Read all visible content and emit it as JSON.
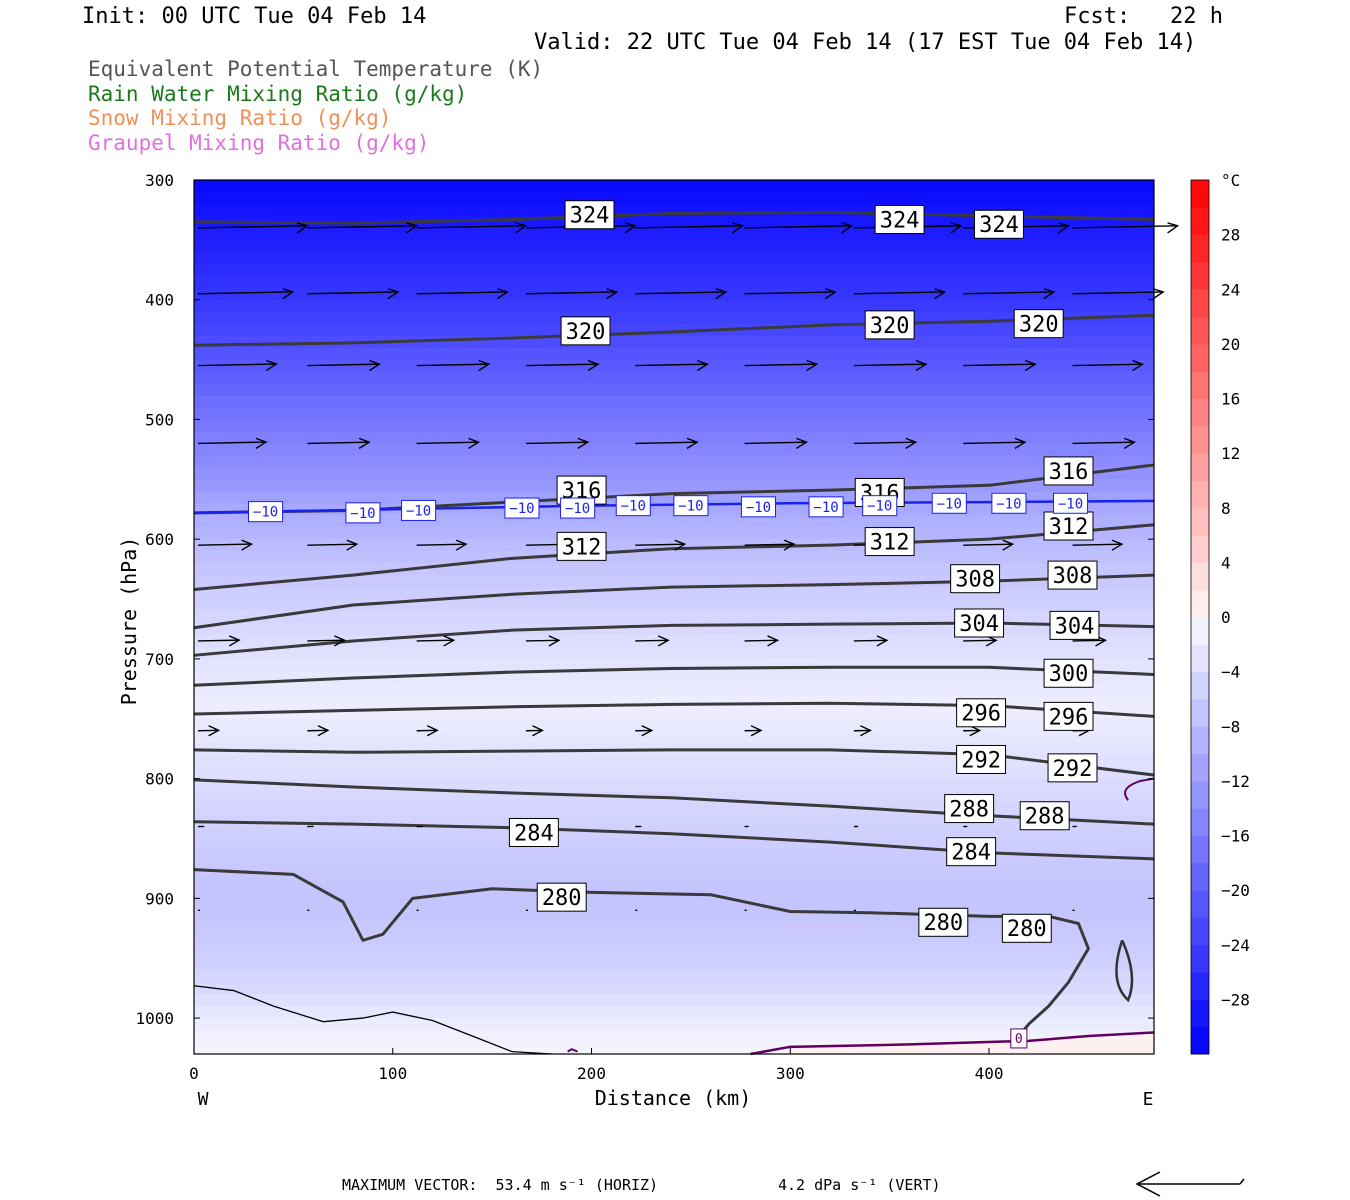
{
  "header": {
    "init": "Init: 00 UTC Tue 04 Feb 14",
    "fcst": "Fcst:   22 h",
    "valid": "Valid: 22 UTC Tue 04 Feb 14 (17 EST Tue 04 Feb 14)"
  },
  "fields": [
    {
      "label": "Equivalent Potential Temperature (K)",
      "color": "#555555"
    },
    {
      "label": "Rain Water Mixing Ratio (g/kg)",
      "color": "#1a7a1a"
    },
    {
      "label": "Snow Mixing Ratio (g/kg)",
      "color": "#f0905a"
    },
    {
      "label": "Graupel Mixing Ratio (g/kg)",
      "color": "#e070e0"
    }
  ],
  "footer": {
    "max_vector_label": "MAXIMUM VECTOR:",
    "horiz": "53.4 m s⁻¹ (HORIZ)",
    "vert": "4.2 dPa s⁻¹ (VERT)"
  },
  "chart_data": {
    "type": "heatmap",
    "xlabel": "Distance (km)",
    "ylabel": "Pressure (hPa)",
    "xlim": [
      0,
      483
    ],
    "ylim": [
      1030,
      300
    ],
    "x_ticks": [
      0,
      100,
      200,
      300,
      400
    ],
    "y_ticks": [
      300,
      400,
      500,
      600,
      700,
      800,
      900,
      1000
    ],
    "x_end_labels": {
      "left": "W",
      "right": "E"
    },
    "colorbar": {
      "unit": "°C",
      "ticks": [
        28,
        24,
        20,
        16,
        12,
        8,
        4,
        0,
        -4,
        -8,
        -12,
        -16,
        -20,
        -24,
        -28
      ],
      "range": [
        -32,
        32
      ]
    },
    "theta_e_contours": [
      {
        "value": 324,
        "points": [
          [
            0,
            335
          ],
          [
            80,
            336
          ],
          [
            160,
            333
          ],
          [
            240,
            328
          ],
          [
            320,
            327
          ],
          [
            400,
            330
          ],
          [
            483,
            333
          ]
        ],
        "labels": [
          [
            199,
            329
          ],
          [
            355,
            333
          ],
          [
            405,
            337
          ]
        ]
      },
      {
        "value": 320,
        "points": [
          [
            0,
            438
          ],
          [
            80,
            436
          ],
          [
            160,
            432
          ],
          [
            240,
            427
          ],
          [
            320,
            421
          ],
          [
            400,
            418
          ],
          [
            483,
            413
          ]
        ],
        "labels": [
          [
            197,
            426
          ],
          [
            350,
            421
          ],
          [
            425,
            420
          ]
        ]
      },
      {
        "value": 316,
        "points": [
          [
            0,
            578
          ],
          [
            80,
            576
          ],
          [
            160,
            569
          ],
          [
            240,
            562
          ],
          [
            320,
            559
          ],
          [
            400,
            555
          ],
          [
            483,
            538
          ]
        ],
        "labels": [
          [
            195,
            559
          ],
          [
            345,
            561
          ],
          [
            440,
            543
          ]
        ]
      },
      {
        "value": 312,
        "points": [
          [
            0,
            642
          ],
          [
            80,
            630
          ],
          [
            160,
            616
          ],
          [
            240,
            608
          ],
          [
            320,
            605
          ],
          [
            400,
            600
          ],
          [
            483,
            588
          ]
        ],
        "labels": [
          [
            195,
            606
          ],
          [
            350,
            602
          ],
          [
            440,
            589
          ]
        ]
      },
      {
        "value": 308,
        "points": [
          [
            0,
            674
          ],
          [
            80,
            655
          ],
          [
            160,
            646
          ],
          [
            240,
            640
          ],
          [
            320,
            638
          ],
          [
            400,
            635
          ],
          [
            483,
            630
          ]
        ],
        "labels": [
          [
            393,
            633
          ],
          [
            442,
            630
          ]
        ]
      },
      {
        "value": 304,
        "points": [
          [
            0,
            697
          ],
          [
            80,
            685
          ],
          [
            160,
            676
          ],
          [
            240,
            672
          ],
          [
            320,
            671
          ],
          [
            400,
            670
          ],
          [
            483,
            673
          ]
        ],
        "labels": [
          [
            395,
            670
          ],
          [
            443,
            672
          ]
        ]
      },
      {
        "value": 300,
        "points": [
          [
            0,
            722
          ],
          [
            80,
            716
          ],
          [
            160,
            711
          ],
          [
            240,
            708
          ],
          [
            320,
            707
          ],
          [
            400,
            707
          ],
          [
            483,
            713
          ]
        ],
        "labels": [
          [
            440,
            712
          ]
        ]
      },
      {
        "value": 296,
        "points": [
          [
            0,
            746
          ],
          [
            80,
            743
          ],
          [
            160,
            740
          ],
          [
            240,
            738
          ],
          [
            320,
            737
          ],
          [
            400,
            739
          ],
          [
            483,
            748
          ]
        ],
        "labels": [
          [
            396,
            745
          ],
          [
            440,
            748
          ]
        ]
      },
      {
        "value": 292,
        "points": [
          [
            0,
            776
          ],
          [
            80,
            778
          ],
          [
            160,
            777
          ],
          [
            240,
            776
          ],
          [
            320,
            776
          ],
          [
            400,
            780
          ],
          [
            483,
            797
          ]
        ],
        "labels": [
          [
            396,
            784
          ],
          [
            442,
            791
          ]
        ]
      },
      {
        "value": 288,
        "points": [
          [
            0,
            801
          ],
          [
            80,
            807
          ],
          [
            160,
            812
          ],
          [
            240,
            816
          ],
          [
            320,
            823
          ],
          [
            400,
            831
          ],
          [
            483,
            838
          ]
        ],
        "labels": [
          [
            390,
            825
          ],
          [
            428,
            831
          ]
        ]
      },
      {
        "value": 284,
        "points": [
          [
            0,
            836
          ],
          [
            80,
            838
          ],
          [
            160,
            841
          ],
          [
            240,
            846
          ],
          [
            320,
            853
          ],
          [
            400,
            862
          ],
          [
            483,
            867
          ]
        ],
        "labels": [
          [
            171,
            845
          ],
          [
            391,
            861
          ]
        ]
      },
      {
        "value": 280,
        "points": [
          [
            0,
            876
          ],
          [
            50,
            880
          ],
          [
            75,
            903
          ],
          [
            85,
            935
          ],
          [
            95,
            930
          ],
          [
            110,
            900
          ],
          [
            150,
            892
          ],
          [
            200,
            895
          ],
          [
            260,
            897
          ],
          [
            300,
            911
          ],
          [
            340,
            912
          ],
          [
            400,
            915
          ],
          [
            430,
            915
          ],
          [
            445,
            921
          ],
          [
            450,
            942
          ],
          [
            440,
            970
          ],
          [
            430,
            990
          ],
          [
            420,
            1005
          ],
          [
            415,
            1015
          ]
        ],
        "labels": [
          [
            185,
            899
          ],
          [
            377,
            920
          ],
          [
            419,
            925
          ]
        ]
      }
    ],
    "temperature_contour": {
      "value": -10,
      "points": [
        [
          0,
          578
        ],
        [
          100,
          575
        ],
        [
          200,
          572
        ],
        [
          300,
          570
        ],
        [
          400,
          569
        ],
        [
          483,
          568
        ]
      ],
      "labels": [
        [
          36,
          577
        ],
        [
          85,
          578
        ],
        [
          113,
          576
        ],
        [
          165,
          574
        ],
        [
          193,
          574
        ],
        [
          221,
          572
        ],
        [
          250,
          572
        ],
        [
          284,
          573
        ],
        [
          318,
          573
        ],
        [
          345,
          572
        ],
        [
          380,
          570
        ],
        [
          410,
          570
        ],
        [
          441,
          570
        ]
      ]
    },
    "freezing_contour": {
      "value": 0,
      "label_at": [
        415,
        1017
      ]
    },
    "wind_vectors": {
      "max_horiz": 53.4,
      "max_vert": 4.2,
      "rows": [
        {
          "p": 340,
          "x": [
            0,
            55,
            110,
            165,
            220,
            275,
            330,
            385,
            440
          ],
          "u": [
            53,
            53,
            53,
            53,
            52,
            52,
            52,
            51,
            51
          ]
        },
        {
          "p": 395,
          "x": [
            0,
            55,
            110,
            165,
            220,
            275,
            330,
            385,
            440
          ],
          "u": [
            46,
            44,
            44,
            44,
            44,
            44,
            44,
            44,
            44
          ]
        },
        {
          "p": 455,
          "x": [
            0,
            55,
            110,
            165,
            220,
            275,
            330,
            385,
            440
          ],
          "u": [
            38,
            35,
            35,
            35,
            35,
            35,
            35,
            35,
            34
          ]
        },
        {
          "p": 520,
          "x": [
            0,
            55,
            110,
            165,
            220,
            275,
            330,
            385,
            440
          ],
          "u": [
            33,
            30,
            30,
            30,
            30,
            30,
            30,
            30,
            30
          ]
        },
        {
          "p": 605,
          "x": [
            0,
            55,
            110,
            165,
            220,
            275,
            330,
            385,
            440
          ],
          "u": [
            26,
            24,
            24,
            24,
            24,
            24,
            24,
            24,
            24
          ]
        },
        {
          "p": 685,
          "x": [
            0,
            55,
            110,
            165,
            220,
            275,
            330,
            385,
            440
          ],
          "u": [
            20,
            18,
            18,
            16,
            16,
            16,
            16,
            16,
            16
          ]
        },
        {
          "p": 760,
          "x": [
            0,
            55,
            110,
            165,
            220,
            275,
            330,
            385,
            440
          ],
          "u": [
            10,
            10,
            10,
            8,
            8,
            8,
            8,
            8,
            8
          ]
        },
        {
          "p": 840,
          "x": [
            0,
            55,
            110,
            165,
            220,
            275,
            330,
            385,
            440
          ],
          "u": [
            3,
            3,
            3,
            3,
            3,
            2,
            2,
            2,
            2
          ]
        },
        {
          "p": 910,
          "x": [
            0,
            55,
            110,
            165,
            220,
            275,
            330,
            385,
            440
          ],
          "u": [
            1,
            1,
            1,
            1,
            1,
            1,
            1,
            1,
            1
          ]
        }
      ]
    }
  }
}
